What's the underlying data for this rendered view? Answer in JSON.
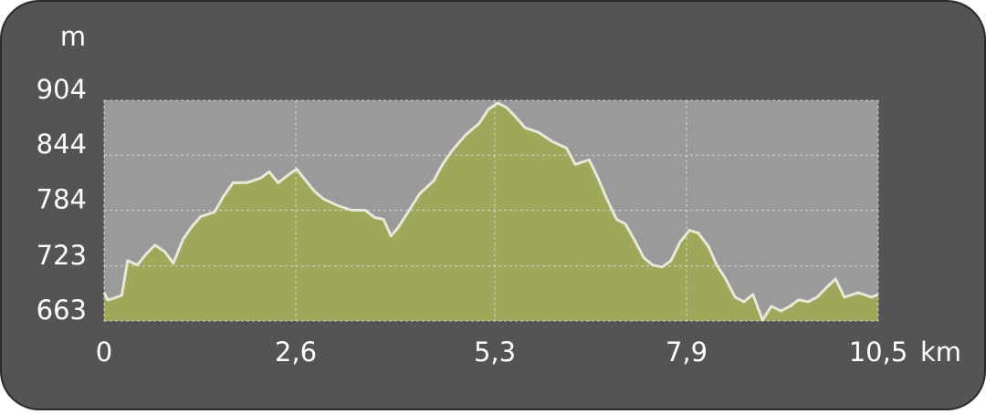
{
  "chart_data": {
    "type": "area",
    "y_unit": "m",
    "x_unit": "km",
    "x": [
      0,
      0.05,
      0.14,
      0.24,
      0.32,
      0.45,
      0.57,
      0.69,
      0.82,
      0.94,
      1.07,
      1.19,
      1.31,
      1.5,
      1.62,
      1.75,
      1.93,
      2.12,
      2.24,
      2.36,
      2.49,
      2.61,
      2.74,
      2.86,
      2.98,
      3.17,
      3.36,
      3.54,
      3.67,
      3.79,
      3.89,
      3.98,
      4.1,
      4.28,
      4.47,
      4.59,
      4.72,
      4.9,
      5.09,
      5.21,
      5.34,
      5.46,
      5.58,
      5.71,
      5.89,
      6.08,
      6.27,
      6.39,
      6.58,
      6.7,
      6.82,
      6.95,
      7.07,
      7.19,
      7.32,
      7.44,
      7.57,
      7.69,
      7.81,
      7.94,
      8.06,
      8.2,
      8.31,
      8.43,
      8.56,
      8.68,
      8.8,
      8.93,
      9.05,
      9.18,
      9.3,
      9.42,
      9.55,
      9.67,
      9.79,
      9.92,
      10.04,
      10.23,
      10.41,
      10.5
    ],
    "series": [
      {
        "color": "#a0a65a",
        "line_color": "#e6e8d8",
        "values": [
          694,
          686,
          688,
          691,
          729,
          724,
          736,
          746,
          739,
          726,
          752,
          766,
          777,
          782,
          799,
          814,
          814,
          819,
          826,
          814,
          822,
          829,
          816,
          804,
          796,
          789,
          784,
          784,
          776,
          774,
          756,
          764,
          779,
          802,
          816,
          834,
          849,
          866,
          879,
          894,
          901,
          896,
          886,
          874,
          869,
          859,
          852,
          834,
          839,
          819,
          796,
          774,
          769,
          752,
          732,
          724,
          722,
          729,
          749,
          762,
          759,
          744,
          724,
          709,
          689,
          684,
          692,
          664,
          679,
          674,
          679,
          686,
          684,
          689,
          699,
          709,
          689,
          694,
          689,
          692
        ]
      }
    ],
    "xlim": [
      0,
      10.5
    ],
    "xticks": [
      0,
      {
        "value": 2.6,
        "label": "2,6"
      },
      {
        "value": 5.3,
        "label": "5,3"
      },
      {
        "value": 7.9,
        "label": "7,9"
      },
      {
        "value": 10.5,
        "label": "10,5"
      }
    ],
    "ylim": [
      663,
      904
    ],
    "yticks": [
      904,
      844,
      784,
      723,
      663
    ],
    "grid": true
  }
}
